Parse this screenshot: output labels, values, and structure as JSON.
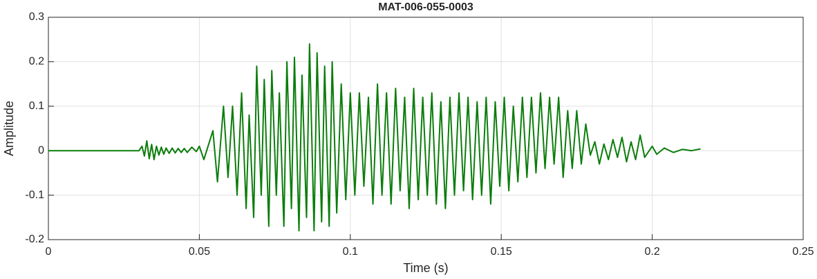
{
  "chart_data": {
    "type": "line",
    "title": "MAT-006-055-0003",
    "xlabel": "Time (s)",
    "ylabel": "Amplitude",
    "xlim": [
      0,
      0.25
    ],
    "xticks": [
      0,
      0.05,
      0.1,
      0.15,
      0.2,
      0.25
    ],
    "ylim": [
      -0.2,
      0.3
    ],
    "yticks": [
      -0.2,
      -0.1,
      0,
      0.1,
      0.2,
      0.3
    ],
    "grid": true,
    "series": [
      {
        "color": "#0a7d0a",
        "x": [
          0,
          0.03,
          0.031,
          0.0318,
          0.0326,
          0.0334,
          0.0342,
          0.035,
          0.0358,
          0.0366,
          0.0374,
          0.0382,
          0.039,
          0.04,
          0.041,
          0.042,
          0.043,
          0.044,
          0.045,
          0.046,
          0.0475,
          0.049,
          0.05,
          0.0515,
          0.0545,
          0.056,
          0.058,
          0.0595,
          0.061,
          0.0625,
          0.064,
          0.0655,
          0.0665,
          0.068,
          0.069,
          0.0705,
          0.0715,
          0.073,
          0.074,
          0.0755,
          0.0765,
          0.078,
          0.079,
          0.0805,
          0.0815,
          0.083,
          0.084,
          0.0855,
          0.0865,
          0.088,
          0.089,
          0.0905,
          0.0915,
          0.093,
          0.094,
          0.0955,
          0.097,
          0.0985,
          0.1,
          0.1015,
          0.103,
          0.1045,
          0.106,
          0.1075,
          0.109,
          0.1105,
          0.112,
          0.1135,
          0.115,
          0.1165,
          0.118,
          0.1195,
          0.121,
          0.1225,
          0.124,
          0.1255,
          0.127,
          0.1285,
          0.13,
          0.1315,
          0.133,
          0.1345,
          0.136,
          0.1375,
          0.139,
          0.1405,
          0.142,
          0.1435,
          0.145,
          0.1465,
          0.148,
          0.1495,
          0.151,
          0.1525,
          0.154,
          0.1555,
          0.157,
          0.1585,
          0.16,
          0.1615,
          0.163,
          0.1645,
          0.166,
          0.1675,
          0.169,
          0.1705,
          0.172,
          0.1735,
          0.175,
          0.1765,
          0.178,
          0.1795,
          0.181,
          0.1825,
          0.184,
          0.1855,
          0.187,
          0.1885,
          0.19,
          0.1915,
          0.193,
          0.1945,
          0.196,
          0.1975,
          0.2,
          0.2015,
          0.204,
          0.207,
          0.21,
          0.213,
          0.216
        ],
        "values": [
          0,
          0,
          0.01,
          -0.012,
          0.022,
          -0.018,
          0.014,
          -0.02,
          0.01,
          -0.01,
          0.008,
          -0.008,
          0.006,
          -0.006,
          0.006,
          -0.005,
          0.005,
          -0.004,
          0.005,
          -0.004,
          0.008,
          -0.002,
          0.01,
          -0.02,
          0.045,
          -0.07,
          0.1,
          -0.06,
          0.1,
          -0.1,
          0.13,
          -0.13,
          0.08,
          -0.15,
          0.19,
          -0.1,
          0.16,
          -0.17,
          0.18,
          -0.1,
          0.13,
          -0.17,
          0.2,
          -0.13,
          0.21,
          -0.18,
          0.17,
          -0.15,
          0.24,
          -0.18,
          0.22,
          -0.16,
          0.19,
          -0.17,
          0.2,
          -0.14,
          0.15,
          -0.11,
          0.13,
          -0.1,
          0.13,
          -0.08,
          0.12,
          -0.12,
          0.15,
          -0.1,
          0.13,
          -0.12,
          0.14,
          -0.09,
          0.12,
          -0.13,
          0.14,
          -0.11,
          0.12,
          -0.1,
          0.13,
          -0.12,
          0.11,
          -0.13,
          0.12,
          -0.1,
          0.13,
          -0.09,
          0.12,
          -0.11,
          0.11,
          -0.1,
          0.12,
          -0.12,
          0.11,
          -0.08,
          0.12,
          -0.09,
          0.1,
          -0.07,
          0.12,
          -0.06,
          0.12,
          -0.05,
          0.13,
          -0.04,
          0.12,
          -0.03,
          0.12,
          -0.06,
          0.09,
          -0.04,
          0.09,
          -0.03,
          0.06,
          -0.01,
          0.02,
          -0.03,
          0.015,
          -0.02,
          0.025,
          -0.015,
          0.03,
          -0.025,
          0.02,
          -0.02,
          0.035,
          -0.015,
          0.01,
          -0.008,
          0.006,
          -0.004,
          0.003,
          0,
          0.004
        ]
      }
    ]
  }
}
